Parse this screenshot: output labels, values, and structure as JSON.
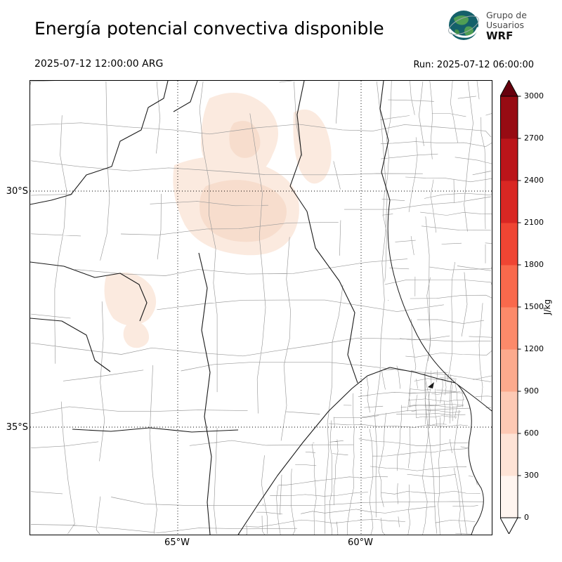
{
  "header": {
    "title": "Energía potencial convectiva disponible",
    "logo": {
      "line1": "Grupo de",
      "line2": "Usuarios",
      "line3": "WRF"
    },
    "valid_time": "2025-07-12 12:00:00 ARG",
    "run_label": "Run: 2025-07-12 06:00:00"
  },
  "axes": {
    "lat": [
      "30°S",
      "35°S"
    ],
    "lon": [
      "65°W",
      "60°W"
    ]
  },
  "colorbar": {
    "unit": "J/kg",
    "ticks": [
      "0",
      "300",
      "600",
      "900",
      "1200",
      "1500",
      "1800",
      "2100",
      "2400",
      "2700",
      "3000"
    ],
    "colors": [
      "#fff5f0",
      "#fee3d6",
      "#fdc9b4",
      "#fcaa8d",
      "#fc8a6a",
      "#f9694c",
      "#ef4533",
      "#d92723",
      "#bb151a",
      "#970b13"
    ],
    "under_color": "#ffffff",
    "over_color": "#67000d",
    "outline_color": "#000000"
  },
  "map_style": {
    "fill_low": "#fbeadf",
    "fill_mid": "#f7ddcd",
    "boundary_color": "#999999",
    "dense_boundary_color": "#8c8c8c",
    "province_color": "#1a1a1a"
  }
}
